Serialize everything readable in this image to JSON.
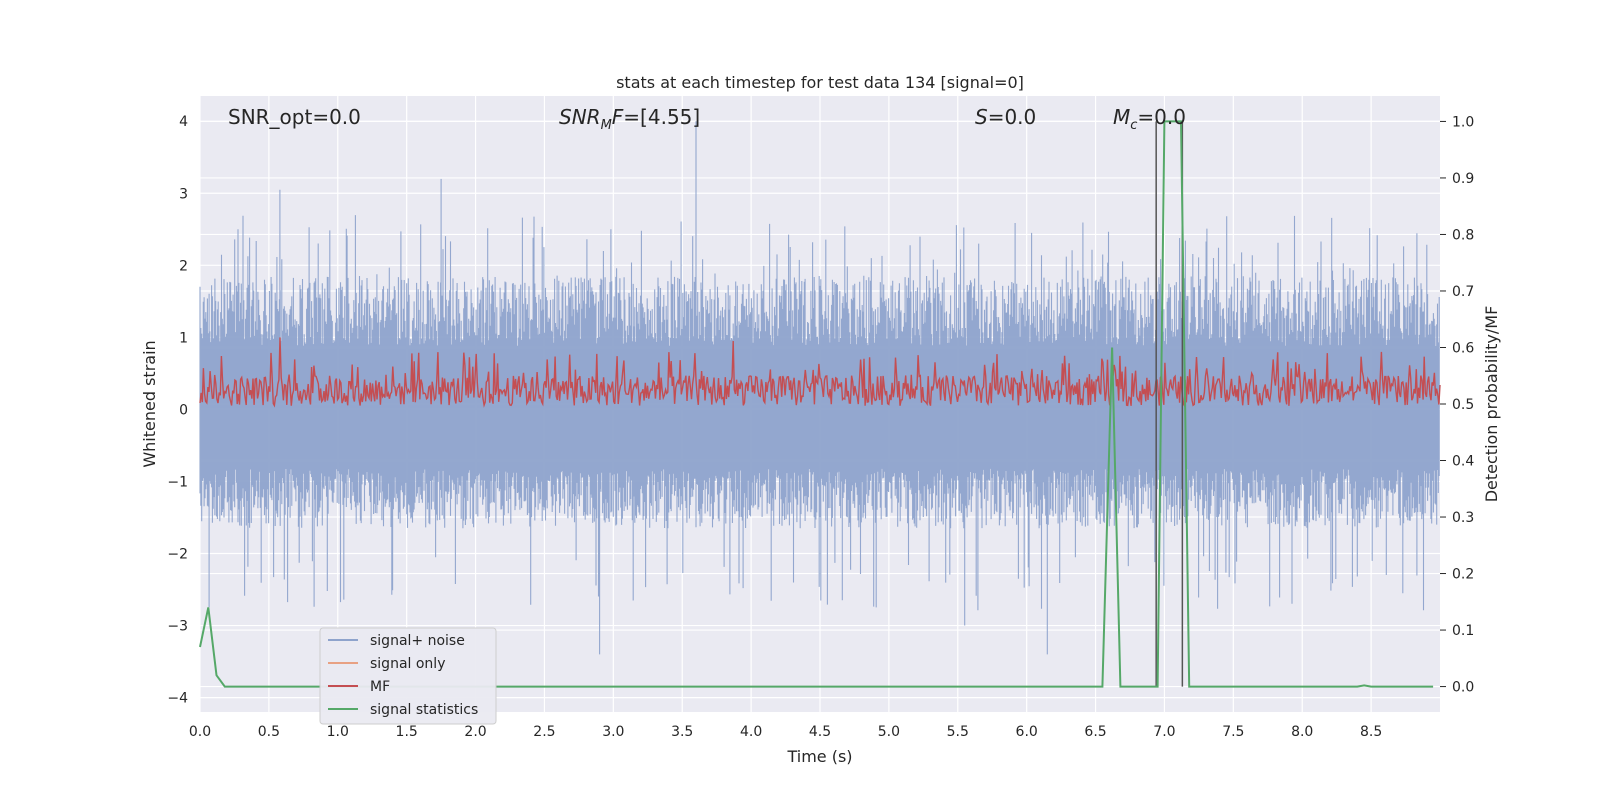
{
  "chart_data": {
    "type": "line",
    "title": "stats at each timestep for test data 134 [signal=0]",
    "xlabel": "Time (s)",
    "ylabel": "Whitened strain",
    "ylabel_right": "Detection probability/MF",
    "xlim": [
      0.0,
      9.0
    ],
    "ylim": [
      -4.2,
      4.35
    ],
    "ylim_right": [
      -0.045,
      1.045
    ],
    "x_ticks": [
      0.0,
      0.5,
      1.0,
      1.5,
      2.0,
      2.5,
      3.0,
      3.5,
      4.0,
      4.5,
      5.0,
      5.5,
      6.0,
      6.5,
      7.0,
      7.5,
      8.0,
      8.5
    ],
    "x_tick_labels": [
      "0.0",
      "0.5",
      "1.0",
      "1.5",
      "2.0",
      "2.5",
      "3.0",
      "3.5",
      "4.0",
      "4.5",
      "5.0",
      "5.5",
      "6.0",
      "6.5",
      "7.0",
      "7.5",
      "8.0",
      "8.5"
    ],
    "y_ticks": [
      4,
      3,
      2,
      1,
      0,
      -1,
      -2,
      -3,
      -4
    ],
    "y_tick_labels": [
      "4",
      "3",
      "2",
      "1",
      "0",
      "−1",
      "−2",
      "−3",
      "−4"
    ],
    "y_ticks_right": [
      1.0,
      0.9,
      0.8,
      0.7,
      0.6,
      0.5,
      0.4,
      0.3,
      0.2,
      0.1,
      0.0
    ],
    "y_tick_labels_right": [
      "1.0",
      "0.9",
      "0.8",
      "0.7",
      "0.6",
      "0.5",
      "0.4",
      "0.3",
      "0.2",
      "0.1",
      "0.0"
    ],
    "grid": true,
    "legend_position": "lower-left",
    "annotations": {
      "snr_opt": "SNR_opt=0.0",
      "snr_mf_italic": "SNR",
      "snr_mf_sub": "M",
      "snr_mf_rest_italic": "F",
      "snr_mf_value": "=[4.55]",
      "s_italic": "S",
      "s_value": "=0.0",
      "mc_italic": "M",
      "mc_sub": "c",
      "mc_value": "=0.0"
    },
    "series": [
      {
        "name": "signal+ noise",
        "color": "#8ea3cc",
        "axis": "left",
        "description_values": {
          "noise_band": [
            -1.5,
            1.6
          ],
          "notable_peaks": [
            [
              3.6,
              4.0
            ],
            [
              1.75,
              3.2
            ],
            [
              0.58,
              3.05
            ],
            [
              2.9,
              -3.4
            ],
            [
              6.15,
              -3.4
            ],
            [
              5.55,
              -3.0
            ]
          ]
        }
      },
      {
        "name": "signal only",
        "color": "#e8a183",
        "axis": "left",
        "values_note": "flat at 0"
      },
      {
        "name": "MF",
        "color": "#c44e52",
        "axis": "left",
        "description_values": {
          "band": [
            0.0,
            0.8
          ],
          "notable_peaks": [
            [
              0.58,
              1.0
            ],
            [
              3.87,
              0.95
            ],
            [
              6.62,
              0.8
            ]
          ]
        }
      },
      {
        "name": "signal statistics",
        "color": "#55a868",
        "axis": "right",
        "x": [
          0.0,
          0.06,
          0.12,
          0.18,
          0.25,
          1.0,
          6.55,
          6.62,
          6.68,
          6.95,
          7.0,
          7.12,
          7.18,
          8.4,
          8.45,
          8.5,
          8.95
        ],
        "y": [
          0.07,
          0.14,
          0.02,
          0.0,
          0.0,
          0.0,
          0.0,
          0.6,
          0.0,
          0.0,
          1.0,
          1.0,
          0.0,
          0.0,
          0.002,
          0.0,
          0.0
        ]
      }
    ],
    "vertical_lines": [
      {
        "x": 6.94,
        "color": "#555555"
      },
      {
        "x": 7.13,
        "color": "#555555"
      }
    ]
  }
}
